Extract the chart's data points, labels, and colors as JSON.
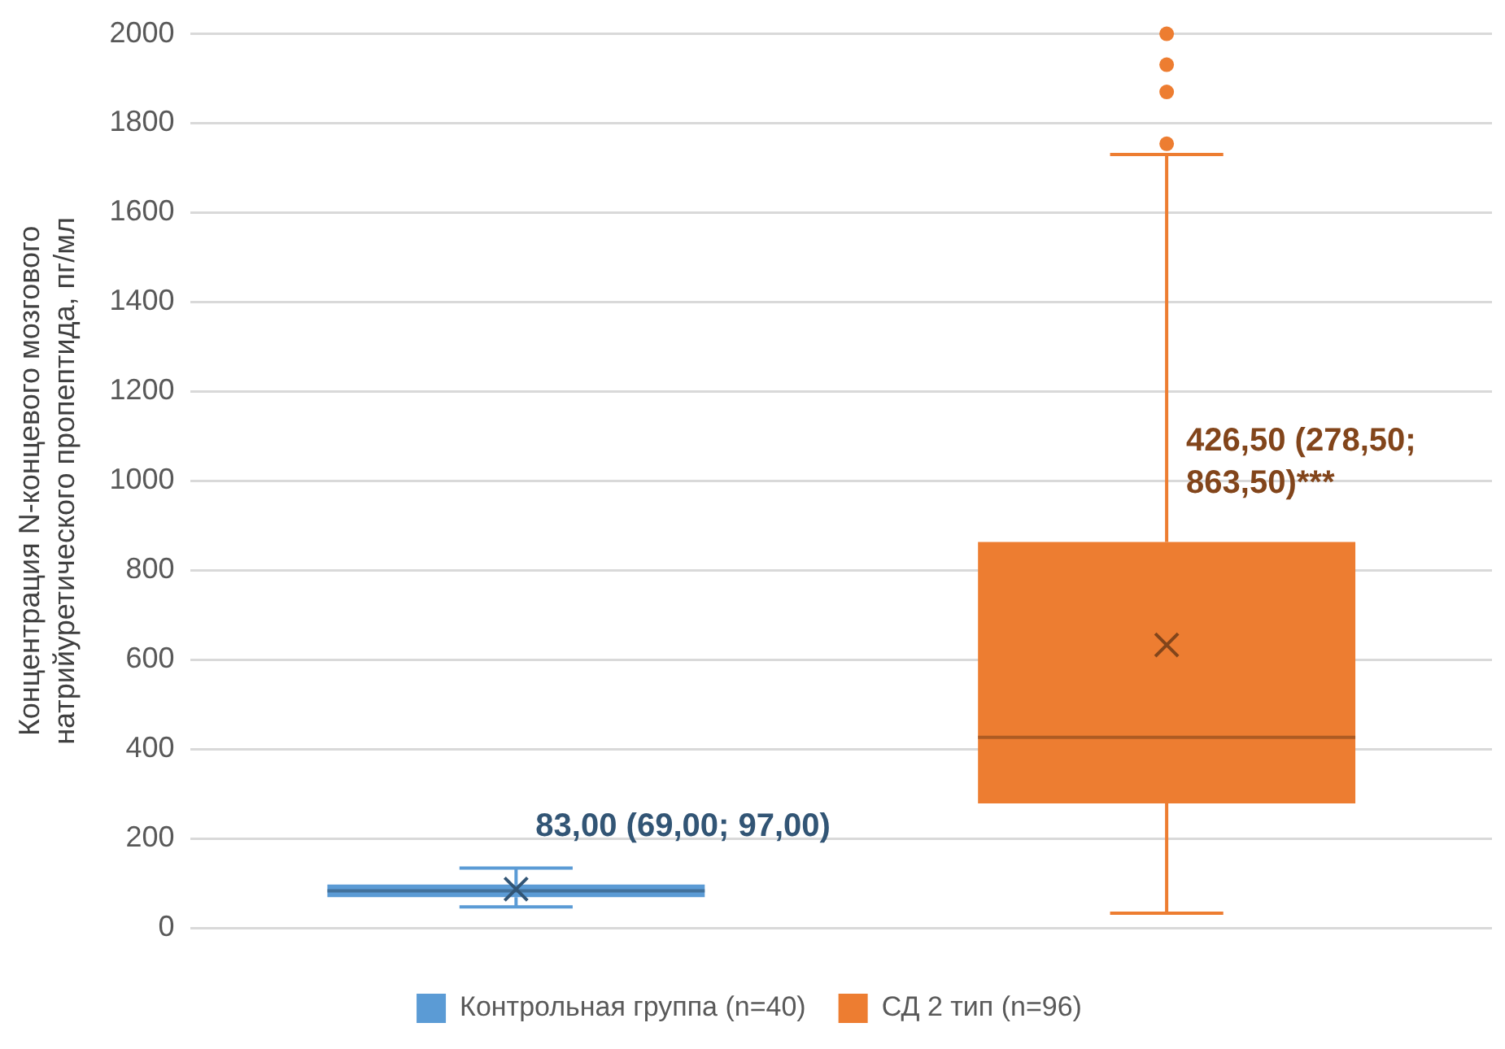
{
  "chart_data": {
    "type": "box",
    "ylabel": "Концентрация N-концевого мозгового натрийуретического пропептида, пг/мл",
    "categories": [
      null,
      null
    ],
    "series": [
      {
        "name": "Контрольная группа (n=40)",
        "color": "#5b9bd5",
        "boxes": [
          {
            "low": 47,
            "q1": 69,
            "median": 83,
            "q3": 97,
            "high": 134,
            "mean": 87
          },
          null
        ]
      },
      {
        "name": "СД 2 тип (n=96)",
        "color": "#ed7d31",
        "boxes": [
          null,
          {
            "low": 33,
            "q1": 278.5,
            "median": 426.5,
            "q3": 863.5,
            "high": 1730,
            "mean": 633,
            "outliers": [
              1754,
              1870,
              1931,
              2000
            ]
          }
        ]
      }
    ],
    "ylim": [
      0,
      2000
    ],
    "yticks": [
      0,
      200,
      400,
      600,
      800,
      1000,
      1200,
      1400,
      1600,
      1800,
      2000
    ],
    "grid": "y",
    "legend": "bottom",
    "annotations": [
      "83,00 (69,00; 97,00)",
      "426,50 (278,50; 863,50)***"
    ]
  }
}
